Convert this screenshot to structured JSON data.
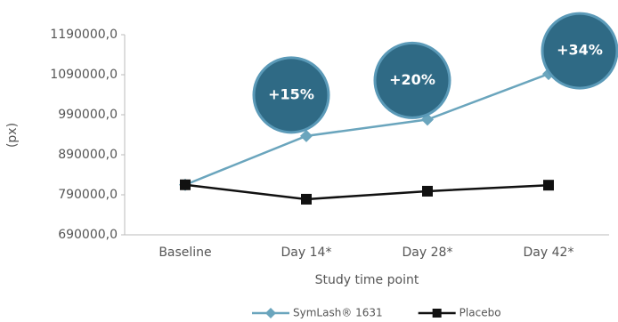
{
  "chart_data": {
    "type": "line",
    "y_label": "(px)",
    "x_label": "Study time point",
    "categories": [
      "Baseline",
      "Day 14*",
      "Day 28*",
      "Day 42*"
    ],
    "series": [
      {
        "name": "SymLash® 1631",
        "color": "#6aa5bd",
        "marker": "diamond",
        "values": [
          815000,
          937000,
          978000,
          1092000
        ]
      },
      {
        "name": "Placebo",
        "color": "#111111",
        "marker": "square",
        "values": [
          815000,
          779000,
          799000,
          814000
        ]
      }
    ],
    "annotations": [
      "+15%",
      "+20%",
      "+34%"
    ],
    "annotation_color": "#2f6a85",
    "ylim": [
      690000,
      1190000
    ],
    "yticks": [
      {
        "value": 690000,
        "label": "690000,0"
      },
      {
        "value": 790000,
        "label": "790000,0"
      },
      {
        "value": 890000,
        "label": "890000,0"
      },
      {
        "value": 990000,
        "label": "990000,0"
      },
      {
        "value": 1090000,
        "label": "1090000,0"
      },
      {
        "value": 1190000,
        "label": "1190000,0"
      }
    ],
    "grid": false
  }
}
